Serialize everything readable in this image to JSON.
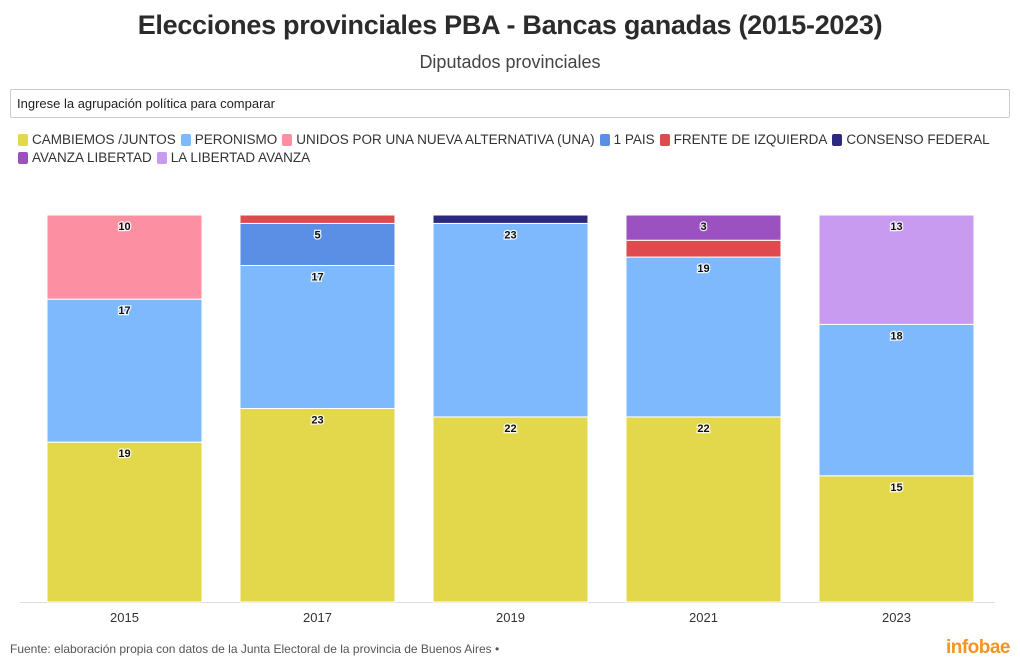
{
  "header": {
    "title": "Elecciones provinciales PBA - Bancas ganadas (2015-2023)",
    "subtitle": "Diputados provinciales"
  },
  "search": {
    "placeholder": "Ingrese la agrupación política para comparar"
  },
  "footer": {
    "source": "Fuente: elaboración propia con datos de la Junta Electoral de la provincia de Buenos Aires •",
    "logo": "infobae"
  },
  "chart_data": {
    "type": "bar",
    "stacked": true,
    "title": "Elecciones provinciales PBA - Bancas ganadas (2015-2023)",
    "subtitle": "Diputados provinciales",
    "categories": [
      "2015",
      "2017",
      "2019",
      "2021",
      "2023"
    ],
    "ylim": [
      0,
      46
    ],
    "grid": false,
    "legend_position": "top",
    "series": [
      {
        "name": "CAMBIEMOS /JUNTOS",
        "color": "#e3d84b",
        "values": [
          19,
          23,
          22,
          22,
          15
        ],
        "labels": [
          "19",
          "23",
          "22",
          "22",
          "15"
        ]
      },
      {
        "name": "PERONISMO",
        "color": "#7eb9fd",
        "values": [
          17,
          17,
          23,
          19,
          18
        ],
        "labels": [
          "17",
          "17",
          "23",
          "19",
          "18"
        ]
      },
      {
        "name": "UNIDOS POR UNA NUEVA ALTERNATIVA (UNA)",
        "color": "#fd8fa3",
        "values": [
          10,
          0,
          0,
          0,
          0
        ],
        "labels": [
          "10",
          "",
          "",
          "",
          ""
        ]
      },
      {
        "name": "1 PAIS",
        "color": "#5b8ee5",
        "values": [
          0,
          5,
          0,
          0,
          0
        ],
        "labels": [
          "",
          "5",
          "",
          "",
          ""
        ]
      },
      {
        "name": "FRENTE DE IZQUIERDA",
        "color": "#df4a4e",
        "values": [
          0,
          1,
          0,
          2,
          0
        ],
        "labels": [
          "",
          "",
          "",
          "",
          ""
        ]
      },
      {
        "name": "CONSENSO FEDERAL",
        "color": "#2c2a80",
        "values": [
          0,
          0,
          1,
          0,
          0
        ],
        "labels": [
          "",
          "",
          "",
          "",
          ""
        ]
      },
      {
        "name": "AVANZA LIBERTAD",
        "color": "#9b51bf",
        "values": [
          0,
          0,
          0,
          3,
          0
        ],
        "labels": [
          "",
          "",
          "",
          "3",
          ""
        ]
      },
      {
        "name": "LA LIBERTAD AVANZA",
        "color": "#c99bf0",
        "values": [
          0,
          0,
          0,
          0,
          13
        ],
        "labels": [
          "",
          "",
          "",
          "",
          "13"
        ]
      }
    ]
  }
}
